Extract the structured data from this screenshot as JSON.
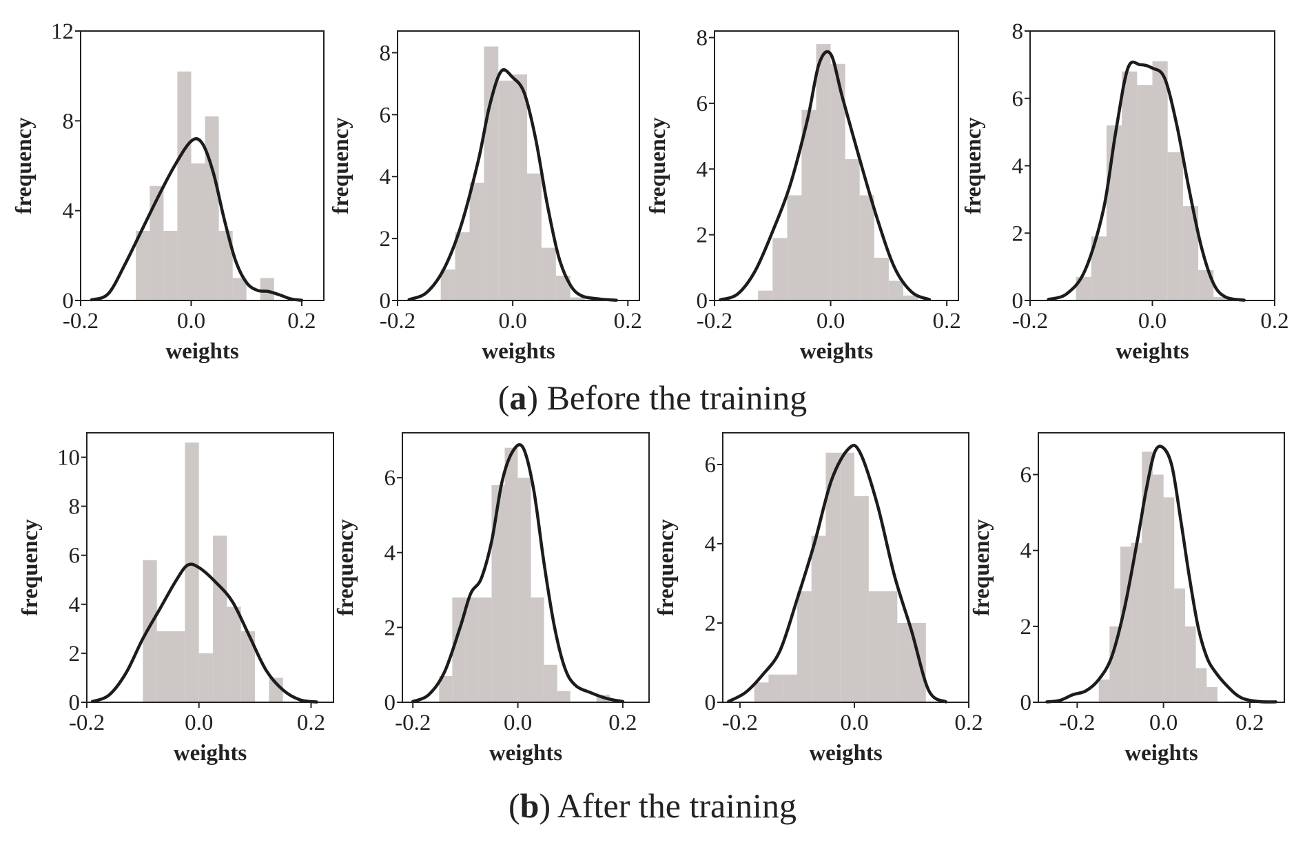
{
  "captions": {
    "a": {
      "letter": "a",
      "text": "Before the training"
    },
    "b": {
      "letter": "b",
      "text": "After the training"
    }
  },
  "colors": {
    "bar": "#cdc8c5",
    "kde": "#1c1c1c",
    "axis": "#222222"
  },
  "chart_data": [
    {
      "type": "bar",
      "group": "a",
      "title": "",
      "xlabel": "weights",
      "ylabel": "frequency",
      "xlim": [
        -0.2,
        0.24
      ],
      "ylim": [
        0,
        12
      ],
      "xticks": [
        -0.2,
        0.0,
        0.2
      ],
      "yticks": [
        0,
        4,
        8,
        12
      ],
      "bin_edges": [
        -0.1,
        -0.075,
        -0.05,
        -0.025,
        0.0,
        0.025,
        0.05,
        0.075,
        0.1,
        0.125,
        0.15
      ],
      "values": [
        3.1,
        5.1,
        3.1,
        10.2,
        6.1,
        8.2,
        3.1,
        1.0,
        0,
        1.0
      ],
      "kde": {
        "x": [
          -0.18,
          -0.15,
          -0.12,
          -0.09,
          -0.06,
          -0.03,
          0.0,
          0.02,
          0.04,
          0.06,
          0.08,
          0.1,
          0.12,
          0.14,
          0.16,
          0.18,
          0.2
        ],
        "y": [
          0.03,
          0.3,
          1.6,
          3.1,
          4.6,
          6.0,
          7.1,
          7.0,
          5.7,
          3.6,
          1.8,
          0.8,
          0.45,
          0.4,
          0.25,
          0.07,
          0.01
        ]
      }
    },
    {
      "type": "bar",
      "group": "a",
      "title": "",
      "xlabel": "weights",
      "ylabel": "frequency",
      "xlim": [
        -0.2,
        0.22
      ],
      "ylim": [
        0,
        8.7
      ],
      "xticks": [
        -0.2,
        0.0,
        0.2
      ],
      "yticks": [
        0,
        2,
        4,
        6,
        8
      ],
      "bin_edges": [
        -0.125,
        -0.1,
        -0.075,
        -0.05,
        -0.025,
        0.0,
        0.025,
        0.05,
        0.075,
        0.1,
        0.125
      ],
      "values": [
        1.0,
        2.2,
        3.8,
        8.2,
        7.1,
        7.3,
        4.1,
        1.7,
        0.8,
        0.1
      ],
      "kde": {
        "x": [
          -0.18,
          -0.15,
          -0.12,
          -0.09,
          -0.06,
          -0.04,
          -0.02,
          0.0,
          0.02,
          0.04,
          0.06,
          0.08,
          0.1,
          0.12,
          0.15,
          0.18
        ],
        "y": [
          0.03,
          0.25,
          1.0,
          2.4,
          4.5,
          6.3,
          7.4,
          7.2,
          6.7,
          5.2,
          3.1,
          1.4,
          0.5,
          0.15,
          0.05,
          0.01
        ]
      }
    },
    {
      "type": "bar",
      "group": "a",
      "title": "",
      "xlabel": "weights",
      "ylabel": "frequency",
      "xlim": [
        -0.2,
        0.22
      ],
      "ylim": [
        0,
        8.2
      ],
      "xticks": [
        -0.2,
        0.0,
        0.2
      ],
      "yticks": [
        0,
        2,
        4,
        6,
        8
      ],
      "bin_edges": [
        -0.125,
        -0.1,
        -0.075,
        -0.05,
        -0.025,
        0.0,
        0.025,
        0.05,
        0.075,
        0.1,
        0.125,
        0.15
      ],
      "values": [
        0.3,
        1.9,
        3.2,
        5.8,
        7.8,
        7.2,
        4.3,
        3.2,
        1.3,
        0.6,
        0.15
      ],
      "kde": {
        "x": [
          -0.19,
          -0.16,
          -0.13,
          -0.1,
          -0.07,
          -0.04,
          -0.02,
          0.0,
          0.02,
          0.05,
          0.08,
          0.11,
          0.14,
          0.17
        ],
        "y": [
          0.02,
          0.2,
          0.9,
          2.1,
          3.5,
          5.5,
          7.2,
          7.5,
          6.2,
          4.3,
          2.5,
          1.0,
          0.25,
          0.03
        ]
      }
    },
    {
      "type": "bar",
      "group": "a",
      "title": "",
      "xlabel": "weights",
      "ylabel": "frequency",
      "xlim": [
        -0.2,
        0.2
      ],
      "ylim": [
        0,
        8
      ],
      "xticks": [
        -0.2,
        0.0,
        0.2
      ],
      "yticks": [
        0,
        2,
        4,
        6,
        8
      ],
      "bin_edges": [
        -0.125,
        -0.1,
        -0.075,
        -0.05,
        -0.025,
        0.0,
        0.025,
        0.05,
        0.075,
        0.1,
        0.125
      ],
      "values": [
        0.7,
        1.9,
        5.2,
        6.8,
        6.4,
        7.1,
        4.4,
        2.8,
        0.9,
        0.1
      ],
      "kde": {
        "x": [
          -0.17,
          -0.14,
          -0.11,
          -0.08,
          -0.06,
          -0.04,
          -0.02,
          0.0,
          0.02,
          0.04,
          0.06,
          0.08,
          0.1,
          0.12,
          0.15
        ],
        "y": [
          0.03,
          0.2,
          0.9,
          2.7,
          5.0,
          6.9,
          7.0,
          6.9,
          6.6,
          5.2,
          3.3,
          1.6,
          0.5,
          0.1,
          0.01
        ]
      }
    },
    {
      "type": "bar",
      "group": "b",
      "title": "",
      "xlabel": "weights",
      "ylabel": "frequency",
      "xlim": [
        -0.2,
        0.24
      ],
      "ylim": [
        0,
        11
      ],
      "xticks": [
        -0.2,
        0.0,
        0.2
      ],
      "yticks": [
        0,
        2,
        4,
        6,
        8,
        10
      ],
      "bin_edges": [
        -0.1,
        -0.075,
        -0.05,
        -0.025,
        0.0,
        0.025,
        0.05,
        0.075,
        0.1,
        0.125,
        0.15
      ],
      "values": [
        5.8,
        2.9,
        2.9,
        10.6,
        2.0,
        6.8,
        3.9,
        2.9,
        0,
        1.0
      ],
      "kde": {
        "x": [
          -0.19,
          -0.16,
          -0.13,
          -0.1,
          -0.07,
          -0.04,
          -0.02,
          0.0,
          0.03,
          0.06,
          0.09,
          0.12,
          0.15,
          0.18,
          0.21
        ],
        "y": [
          0.03,
          0.3,
          1.2,
          2.6,
          3.8,
          5.0,
          5.6,
          5.5,
          4.9,
          4.1,
          2.7,
          1.3,
          0.5,
          0.1,
          0.01
        ]
      }
    },
    {
      "type": "bar",
      "group": "b",
      "title": "",
      "xlabel": "weights",
      "ylabel": "frequency",
      "xlim": [
        -0.22,
        0.25
      ],
      "ylim": [
        0,
        7.2
      ],
      "xticks": [
        -0.2,
        0.0,
        0.2
      ],
      "yticks": [
        0,
        2,
        4,
        6
      ],
      "bin_edges": [
        -0.15,
        -0.125,
        -0.1,
        -0.075,
        -0.05,
        -0.025,
        0.0,
        0.025,
        0.05,
        0.075,
        0.1,
        0.125,
        0.15,
        0.175,
        0.2
      ],
      "values": [
        0.7,
        2.8,
        2.8,
        2.8,
        5.8,
        6.8,
        6.0,
        2.8,
        1.0,
        0.3,
        0,
        0,
        0.2,
        0
      ],
      "kde": {
        "x": [
          -0.2,
          -0.17,
          -0.14,
          -0.11,
          -0.09,
          -0.07,
          -0.05,
          -0.03,
          -0.01,
          0.01,
          0.03,
          0.05,
          0.07,
          0.09,
          0.11,
          0.14,
          0.17,
          0.2
        ],
        "y": [
          0.02,
          0.2,
          0.8,
          2.0,
          2.9,
          3.3,
          4.3,
          5.9,
          6.7,
          6.8,
          5.7,
          3.7,
          2.0,
          0.9,
          0.45,
          0.25,
          0.1,
          0.02
        ]
      }
    },
    {
      "type": "bar",
      "group": "b",
      "title": "",
      "xlabel": "weights",
      "ylabel": "frequency",
      "xlim": [
        -0.23,
        0.2
      ],
      "ylim": [
        0,
        6.8
      ],
      "xticks": [
        -0.2,
        0.0,
        0.2
      ],
      "yticks": [
        0,
        2,
        4,
        6
      ],
      "bin_edges": [
        -0.175,
        -0.15,
        -0.125,
        -0.1,
        -0.075,
        -0.05,
        -0.025,
        0.0,
        0.025,
        0.05,
        0.075,
        0.1,
        0.125
      ],
      "values": [
        0.5,
        0.7,
        0.7,
        2.8,
        4.2,
        6.3,
        6.3,
        5.2,
        2.8,
        2.8,
        2.0,
        2.0
      ],
      "kde": {
        "x": [
          -0.22,
          -0.19,
          -0.16,
          -0.13,
          -0.1,
          -0.07,
          -0.04,
          -0.01,
          0.01,
          0.04,
          0.07,
          0.1,
          0.13,
          0.16
        ],
        "y": [
          0.02,
          0.25,
          0.7,
          1.3,
          2.6,
          4.0,
          5.6,
          6.4,
          6.3,
          5.0,
          3.2,
          1.8,
          0.3,
          0.01
        ]
      }
    },
    {
      "type": "bar",
      "group": "b",
      "title": "",
      "xlabel": "weights",
      "ylabel": "frequency",
      "xlim": [
        -0.29,
        0.28
      ],
      "ylim": [
        0,
        7.1
      ],
      "xticks": [
        -0.2,
        0.0,
        0.2
      ],
      "yticks": [
        0,
        2,
        4,
        6
      ],
      "bin_edges": [
        -0.15,
        -0.125,
        -0.1,
        -0.075,
        -0.05,
        -0.025,
        0.0,
        0.025,
        0.05,
        0.075,
        0.1,
        0.125
      ],
      "values": [
        0.6,
        2.0,
        4.1,
        4.2,
        6.6,
        6.0,
        5.4,
        3.0,
        2.0,
        0.9,
        0.4
      ],
      "kde": {
        "x": [
          -0.27,
          -0.24,
          -0.21,
          -0.18,
          -0.15,
          -0.12,
          -0.09,
          -0.06,
          -0.04,
          -0.02,
          0.0,
          0.02,
          0.04,
          0.06,
          0.08,
          0.1,
          0.12,
          0.15,
          0.18,
          0.22,
          0.26
        ],
        "y": [
          0.01,
          0.05,
          0.2,
          0.3,
          0.6,
          1.2,
          2.5,
          4.3,
          5.6,
          6.6,
          6.7,
          6.2,
          4.8,
          3.3,
          2.0,
          1.2,
          0.8,
          0.4,
          0.12,
          0.02,
          0.01
        ]
      }
    }
  ]
}
